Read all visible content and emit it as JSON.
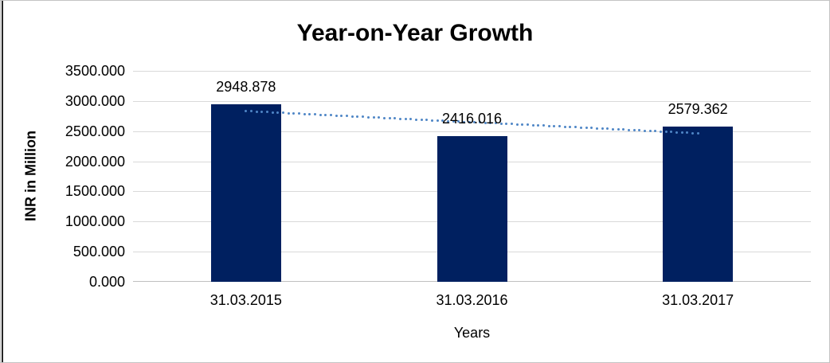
{
  "chart_data": {
    "type": "bar",
    "title": "Year-on-Year Growth",
    "categories": [
      "31.03.2015",
      "31.03.2016",
      "31.03.2017"
    ],
    "values": [
      2948.878,
      2416.016,
      2579.362
    ],
    "data_labels": [
      "2948.878",
      "2416.016",
      "2579.362"
    ],
    "xlabel": "Years",
    "ylabel": "INR in Million",
    "ylim": [
      0,
      3500
    ],
    "ytick_step": 500,
    "ytick_labels": [
      "0.000",
      "500.000",
      "1000.000",
      "1500.000",
      "2000.000",
      "2500.000",
      "3000.000",
      "3500.000"
    ],
    "grid": true,
    "legend": "none",
    "colors": {
      "bar": "#002060",
      "gridline": "#d9d9d9",
      "axis_line": "#bfbfbf",
      "trendline": "#4f86c6",
      "text": "#000000"
    },
    "trendline": {
      "type": "linear",
      "style": "dotted",
      "endpoint_values": [
        2832.84,
        2463.33
      ]
    }
  }
}
